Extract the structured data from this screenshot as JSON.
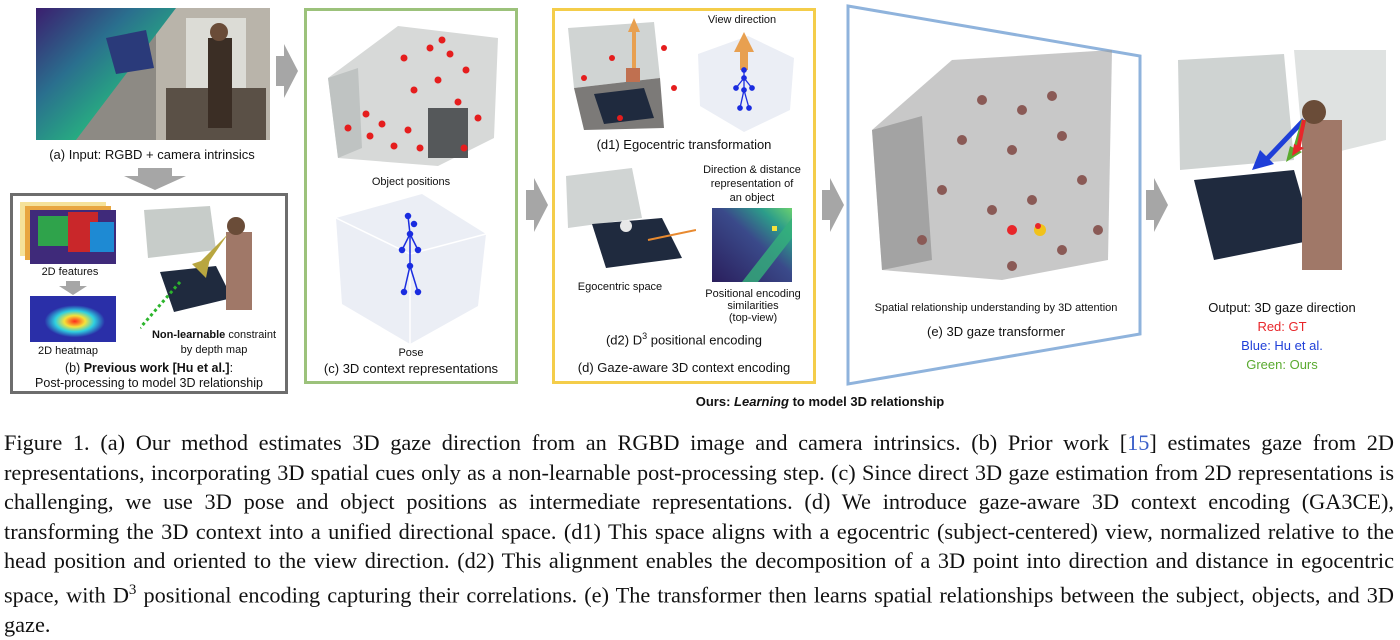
{
  "figure": {
    "panel_a": {
      "caption": "(a)  Input: RGBD + camera intrinsics"
    },
    "panel_b": {
      "label_2d_features": "2D features",
      "label_2d_heatmap": "2D heatmap",
      "nonlearnable_bold": "Non-learnable",
      "nonlearnable_rest": " constraint",
      "nonlearnable_line2": "by depth map",
      "caption_prefix": "(b) ",
      "caption_bold": "Previous work [Hu et al.]",
      "caption_suffix": ":",
      "caption_line2": "Post-processing to model 3D relationship"
    },
    "panel_c": {
      "label_object_positions": "Object positions",
      "label_pose": "Pose",
      "caption": "(c) 3D context representations"
    },
    "panel_d": {
      "label_view_direction": "View direction",
      "caption_d1": "(d1) Egocentric transformation",
      "label_dir_dist_1": "Direction & distance",
      "label_dir_dist_2": "representation of",
      "label_dir_dist_3": "an object",
      "label_egocentric_space": "Egocentric space",
      "label_pe_sim_1": "Positional encoding",
      "label_pe_sim_2": "similarities",
      "label_pe_sim_3": "(top-view)",
      "caption_d2_prefix": "(d2) D",
      "caption_d2_sup": "3",
      "caption_d2_suffix": " positional encoding",
      "caption": "(d) Gaze-aware 3D context encoding"
    },
    "panel_e": {
      "label_spatial": "Spatial relationship understanding by 3D attention",
      "caption": "(e) 3D gaze transformer"
    },
    "output": {
      "title": "Output: 3D gaze direction",
      "red": "Red: GT",
      "blue": "Blue: Hu et al.",
      "green": "Green: Ours"
    },
    "ours_label_prefix": "Ours: ",
    "ours_label_italic": "Learning",
    "ours_label_suffix": " to model 3D relationship",
    "colors": {
      "panel_b_border": "#6d6d6d",
      "panel_c_border": "#9cc27b",
      "panel_d_border": "#f4cd4a",
      "panel_e_border": "#8fb3dc",
      "arrow": "#a6a6a6",
      "gt_red": "#e8262a",
      "hu_blue": "#1f3fd8",
      "ours_green": "#5aaa2f"
    }
  },
  "caption": {
    "figure_label": "Figure 1.",
    "text_before_ref": "(a) Our method estimates 3D gaze direction from an RGBD image and camera intrinsics. (b) Prior work [",
    "ref": "15",
    "text_after_ref": "] estimates gaze from 2D representations, incorporating 3D spatial cues only as a non-learnable post-processing step. (c) Since direct 3D gaze estimation from 2D representations is challenging, we use 3D pose and object positions as intermediate representations. (d) We introduce gaze-aware 3D context encoding (GA3CE), transforming the 3D context into a unified directional space. (d1) This space aligns with a egocentric (subject-centered) view, normalized relative to the head position and oriented to the view direction. (d2) This alignment enables the decomposition of a 3D point into direction and distance in egocentric space, with D",
    "sup": "3",
    "text_end": " positional encoding capturing their correlations. (e) The transformer then learns spatial relationships between the subject, objects, and 3D gaze."
  }
}
